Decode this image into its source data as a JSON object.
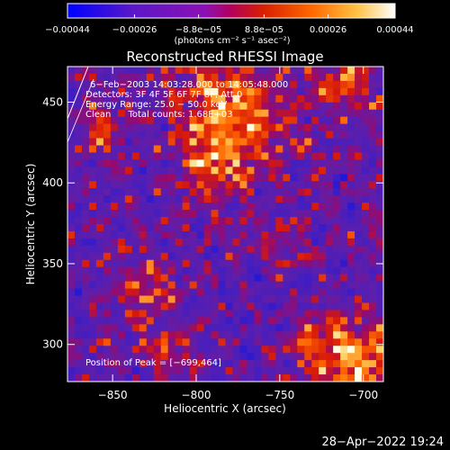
{
  "chart_data": {
    "type": "heatmap",
    "title": "Reconstructed RHESSI Image",
    "xlabel": "Heliocentric X (arcsec)",
    "ylabel": "Heliocentric Y (arcsec)",
    "xlim": [
      -877,
      -688
    ],
    "ylim": [
      277,
      472
    ],
    "xticks": [
      -850,
      -800,
      -750,
      -700
    ],
    "xtick_labels": [
      "−850",
      "−800",
      "−750",
      "−700"
    ],
    "yticks": [
      300,
      350,
      400,
      450
    ],
    "ytick_labels": [
      "300",
      "350",
      "400",
      "450"
    ],
    "colorbar": {
      "range": [
        -0.00044,
        0.00044
      ],
      "ticks": [
        -0.00044,
        -0.00026,
        -8.8e-05,
        8.8e-05,
        0.00026,
        0.00044
      ],
      "tick_labels": [
        "−0.00044",
        "−0.00026",
        "−8.8e−05",
        "8.8e−05",
        "0.00026",
        "0.00044"
      ],
      "units": "(photons cm⁻² s⁻¹ asec⁻²)"
    },
    "annotations": [
      "6−Feb−2003 14:03:28.000 to 14:05:48.000",
      "Detectors: 3F 4F 5F 6F 7F 8F, Att 0",
      "Energy Range: 25.0 − 50.0 keV",
      "Clean      Total counts: 1.68E+03",
      "Position of Peak = [−699,464]"
    ],
    "grid": false
  },
  "footer": {
    "timestamp": "28−Apr−2022 19:24"
  },
  "colors": {
    "background": "#000000",
    "text": "#ffffff"
  }
}
